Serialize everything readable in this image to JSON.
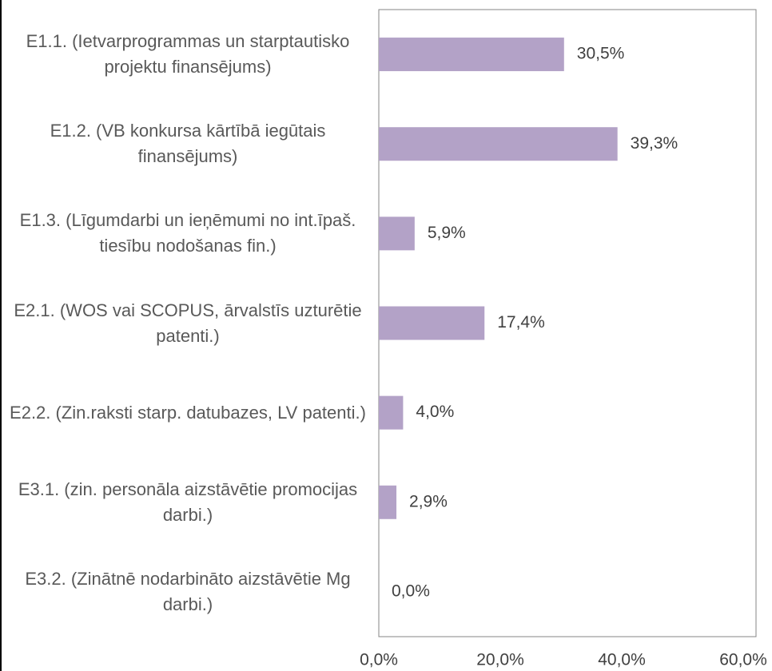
{
  "chart_data": {
    "type": "barh",
    "categories": [
      "E1.1. (Ietvarprogrammas un starptautisko projektu finansējums)",
      "E1.2. (VB konkursa kārtībā iegūtais finansējums)",
      "E1.3. (Līgumdarbi un ieņēmumi no int.īpaš. tiesību nodošanas fin.)",
      "E2.1. (WOS vai SCOPUS, ārvalstīs uzturētie patenti.)",
      "E2.2. (Zin.raksti starp. datubazes, LV patenti.)",
      "E3.1. (zin. personāla aizstāvētie promocijas darbi.)",
      "E3.2. (Zinātnē nodarbināto aizstāvētie Mg darbi.)"
    ],
    "values": [
      30.5,
      39.3,
      5.9,
      17.4,
      4.0,
      2.9,
      0.0
    ],
    "value_labels": [
      "30,5%",
      "39,3%",
      "5,9%",
      "17,4%",
      "4,0%",
      "2,9%",
      "0,0%"
    ],
    "color": "#b3a2c7",
    "xlim": [
      0,
      60
    ],
    "xticks": [
      {
        "value": 0,
        "label": "0,0%"
      },
      {
        "value": 20,
        "label": "20,0%"
      },
      {
        "value": 40,
        "label": "40,0%"
      },
      {
        "value": 60,
        "label": "60,0%"
      }
    ]
  }
}
